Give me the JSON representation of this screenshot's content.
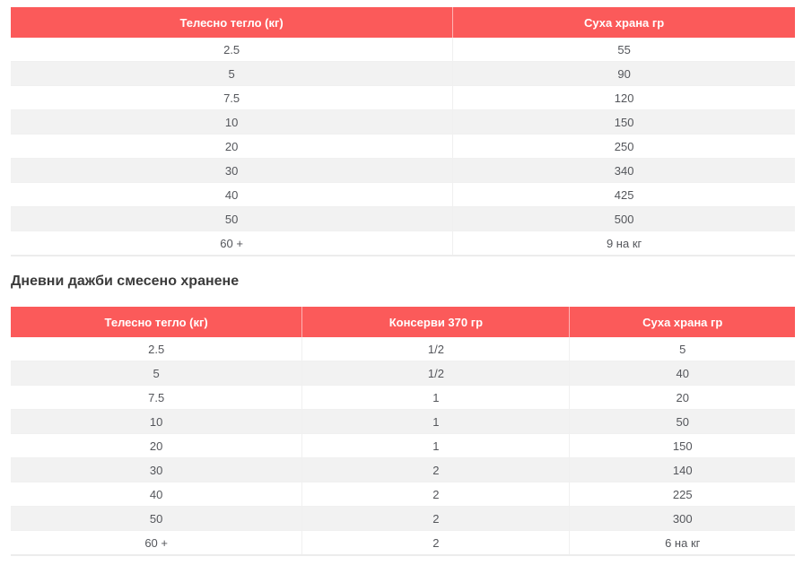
{
  "section_heading": "Дневни дажби смесено хранене",
  "tables": [
    {
      "headers": [
        "Телесно тегло (кг)",
        "Суха храна гр"
      ],
      "rows": [
        [
          "2.5",
          "55"
        ],
        [
          "5",
          "90"
        ],
        [
          "7.5",
          "120"
        ],
        [
          "10",
          "150"
        ],
        [
          "20",
          "250"
        ],
        [
          "30",
          "340"
        ],
        [
          "40",
          "425"
        ],
        [
          "50",
          "500"
        ],
        [
          "60 +",
          "9 на кг"
        ]
      ]
    },
    {
      "headers": [
        "Телесно тегло (кг)",
        "Консерви 370 гр",
        "Суха храна гр"
      ],
      "rows": [
        [
          "2.5",
          "1/2",
          "5"
        ],
        [
          "5",
          "1/2",
          "40"
        ],
        [
          "7.5",
          "1",
          "20"
        ],
        [
          "10",
          "1",
          "50"
        ],
        [
          "20",
          "1",
          "150"
        ],
        [
          "30",
          "2",
          "140"
        ],
        [
          "40",
          "2",
          "225"
        ],
        [
          "50",
          "2",
          "300"
        ],
        [
          "60 +",
          "2",
          "6 на кг"
        ]
      ]
    }
  ],
  "colors": {
    "header_bg": "#fb5a5a",
    "header_text": "#ffffff",
    "stripe": "#f2f2f2",
    "cell_text": "#54565b",
    "cell_border": "#f0f0f0",
    "table_bottom_border": "#ececec",
    "heading_text": "#3b3b3b"
  }
}
